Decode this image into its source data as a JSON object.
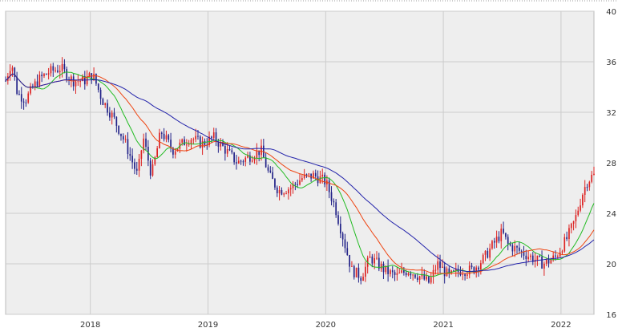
{
  "chart_data": {
    "type": "candlestick",
    "title": "",
    "xlabel": "",
    "ylabel": "",
    "ylim": [
      16,
      40
    ],
    "y_ticks": [
      "40",
      "36",
      "32",
      "28",
      "24",
      "20",
      "16"
    ],
    "y_axis_side": "right",
    "x_ticks": [
      "2018",
      "2019",
      "2020",
      "2021",
      "2022"
    ],
    "x_range": [
      2017.28,
      2022.28
    ],
    "grid": true,
    "legend": "none",
    "colors": {
      "plot_bg": "#eeeeee",
      "grid": "#cccccc",
      "up_candle": "#dd2222",
      "down_candle": "#222288",
      "ma_short": "#22bb22",
      "ma_mid": "#ee4411",
      "ma_long": "#2222aa"
    },
    "price_path": [
      [
        2017.28,
        34.5
      ],
      [
        2017.33,
        36.0
      ],
      [
        2017.38,
        33.5
      ],
      [
        2017.45,
        33.0
      ],
      [
        2017.55,
        34.5
      ],
      [
        2017.65,
        35.2
      ],
      [
        2017.75,
        35.5
      ],
      [
        2017.85,
        34.5
      ],
      [
        2017.95,
        34.5
      ],
      [
        2018.02,
        35.0
      ],
      [
        2018.1,
        33.0
      ],
      [
        2018.2,
        31.5
      ],
      [
        2018.3,
        29.5
      ],
      [
        2018.4,
        27.0
      ],
      [
        2018.45,
        30.0
      ],
      [
        2018.52,
        27.0
      ],
      [
        2018.6,
        30.5
      ],
      [
        2018.7,
        29.0
      ],
      [
        2018.78,
        29.5
      ],
      [
        2018.85,
        30.0
      ],
      [
        2018.95,
        29.5
      ],
      [
        2019.05,
        30.0
      ],
      [
        2019.15,
        29.0
      ],
      [
        2019.25,
        28.0
      ],
      [
        2019.35,
        28.5
      ],
      [
        2019.45,
        29.0
      ],
      [
        2019.52,
        27.0
      ],
      [
        2019.6,
        25.8
      ],
      [
        2019.7,
        26.0
      ],
      [
        2019.8,
        26.8
      ],
      [
        2019.9,
        27.0
      ],
      [
        2020.0,
        26.5
      ],
      [
        2020.08,
        24.5
      ],
      [
        2020.15,
        22.0
      ],
      [
        2020.22,
        19.5
      ],
      [
        2020.3,
        19.0
      ],
      [
        2020.38,
        20.5
      ],
      [
        2020.5,
        19.5
      ],
      [
        2020.6,
        19.0
      ],
      [
        2020.7,
        19.5
      ],
      [
        2020.8,
        19.0
      ],
      [
        2020.88,
        18.5
      ],
      [
        2020.95,
        20.0
      ],
      [
        2021.05,
        19.0
      ],
      [
        2021.15,
        19.5
      ],
      [
        2021.25,
        19.5
      ],
      [
        2021.35,
        20.5
      ],
      [
        2021.42,
        21.5
      ],
      [
        2021.5,
        22.5
      ],
      [
        2021.55,
        21.5
      ],
      [
        2021.65,
        21.0
      ],
      [
        2021.75,
        20.5
      ],
      [
        2021.85,
        20.0
      ],
      [
        2021.95,
        20.5
      ],
      [
        2022.05,
        22.0
      ],
      [
        2022.12,
        23.5
      ],
      [
        2022.18,
        25.5
      ],
      [
        2022.22,
        26.5
      ],
      [
        2022.27,
        27.0
      ]
    ]
  }
}
